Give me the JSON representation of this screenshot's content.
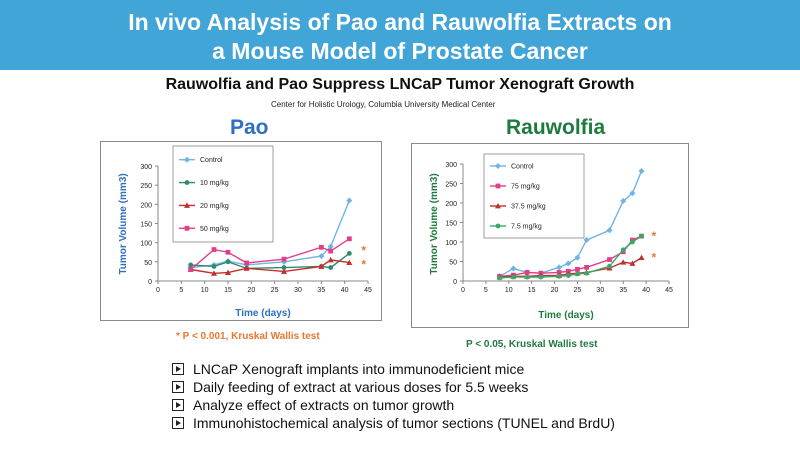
{
  "header": {
    "title_line1": "In vivo Analysis of Pao and Rauwolfia Extracts on",
    "title_line2": "a Mouse Model of Prostate Cancer",
    "subtitle": "Rauwolfia and Pao Suppress LNCaP Tumor Xenograft Growth",
    "affiliation": "Center for Holistic Urology, Columbia University Medical Center",
    "banner_color": "#42a5d8"
  },
  "chart_data": [
    {
      "type": "line",
      "title": "Pao",
      "xlabel": "Time (days)",
      "ylabel": "Tumor Volume (mm3)",
      "xlim": [
        0,
        45
      ],
      "ylim": [
        0,
        300
      ],
      "xticks": [
        0,
        5,
        10,
        15,
        20,
        25,
        30,
        35,
        40,
        45
      ],
      "yticks": [
        0,
        50,
        100,
        150,
        200,
        250,
        300
      ],
      "significance_markers": [
        "*",
        "*"
      ],
      "series": [
        {
          "name": "Control",
          "color": "#6fb3e8",
          "marker": "diamond",
          "x": [
            7,
            12,
            15,
            19,
            27,
            35,
            37,
            41
          ],
          "y": [
            35,
            42,
            52,
            42,
            50,
            65,
            90,
            210
          ]
        },
        {
          "name": "10 mg/kg",
          "color": "#2e8b6e",
          "marker": "circle",
          "x": [
            7,
            12,
            15,
            19,
            27,
            35,
            37,
            41
          ],
          "y": [
            42,
            38,
            50,
            33,
            35,
            38,
            35,
            72
          ]
        },
        {
          "name": "20 mg/kg",
          "color": "#c0302c",
          "marker": "triangle",
          "x": [
            7,
            12,
            15,
            19,
            27,
            35,
            37,
            41
          ],
          "y": [
            30,
            20,
            22,
            33,
            25,
            38,
            55,
            48
          ]
        },
        {
          "name": "50 mg/kg",
          "color": "#e0408a",
          "marker": "square",
          "x": [
            7,
            12,
            15,
            19,
            27,
            35,
            37,
            41
          ],
          "y": [
            30,
            82,
            75,
            47,
            57,
            88,
            78,
            110
          ]
        }
      ]
    },
    {
      "type": "line",
      "title": "Rauwolfia",
      "xlabel": "Time (days)",
      "ylabel": "Tumor Volume (mm3)",
      "xlim": [
        0,
        45
      ],
      "ylim": [
        0,
        300
      ],
      "xticks": [
        0,
        5,
        10,
        15,
        20,
        25,
        30,
        35,
        40,
        45
      ],
      "yticks": [
        0,
        50,
        100,
        150,
        200,
        250,
        300
      ],
      "significance_markers": [
        "*",
        "*"
      ],
      "series": [
        {
          "name": "Control",
          "color": "#6fb3e8",
          "marker": "diamond",
          "x": [
            8,
            11,
            14,
            17,
            21,
            23,
            25,
            27,
            32,
            35,
            37,
            39
          ],
          "y": [
            12,
            32,
            22,
            20,
            35,
            45,
            60,
            105,
            130,
            205,
            225,
            282
          ]
        },
        {
          "name": "75 mg/kg",
          "color": "#e0408a",
          "marker": "square",
          "x": [
            8,
            11,
            14,
            17,
            21,
            23,
            25,
            27,
            32,
            35,
            37,
            39
          ],
          "y": [
            12,
            15,
            22,
            20,
            22,
            25,
            30,
            35,
            55,
            75,
            105,
            115
          ]
        },
        {
          "name": "37.5 mg/kg",
          "color": "#c0302c",
          "marker": "triangle",
          "x": [
            8,
            11,
            14,
            17,
            21,
            23,
            25,
            27,
            32,
            35,
            37,
            39
          ],
          "y": [
            10,
            12,
            12,
            14,
            14,
            18,
            20,
            22,
            33,
            48,
            45,
            60
          ]
        },
        {
          "name": "7.5 mg/kg",
          "color": "#3aa868",
          "marker": "circle",
          "x": [
            8,
            11,
            14,
            17,
            21,
            23,
            25,
            27,
            32,
            35,
            37,
            39
          ],
          "y": [
            8,
            10,
            10,
            10,
            12,
            14,
            18,
            20,
            38,
            80,
            100,
            115
          ]
        }
      ]
    }
  ],
  "stats": {
    "pao": "* P < 0.001, Kruskal Wallis test",
    "rauwolfia": "P < 0.05, Kruskal Wallis test"
  },
  "bullets": [
    "LNCaP Xenograft implants into immunodeficient mice",
    "Daily feeding of extract at various doses for 5.5 weeks",
    "Analyze effect of extracts on tumor growth",
    "Immunohistochemical analysis of tumor sections (TUNEL and BrdU)"
  ],
  "colors": {
    "pao_title": "#2e6fc0",
    "rauwolfia_title": "#1f7a3f",
    "pao_stat": "#e8772e",
    "rauwolfia_stat": "#1f7a3f",
    "star": "#e8772e"
  }
}
